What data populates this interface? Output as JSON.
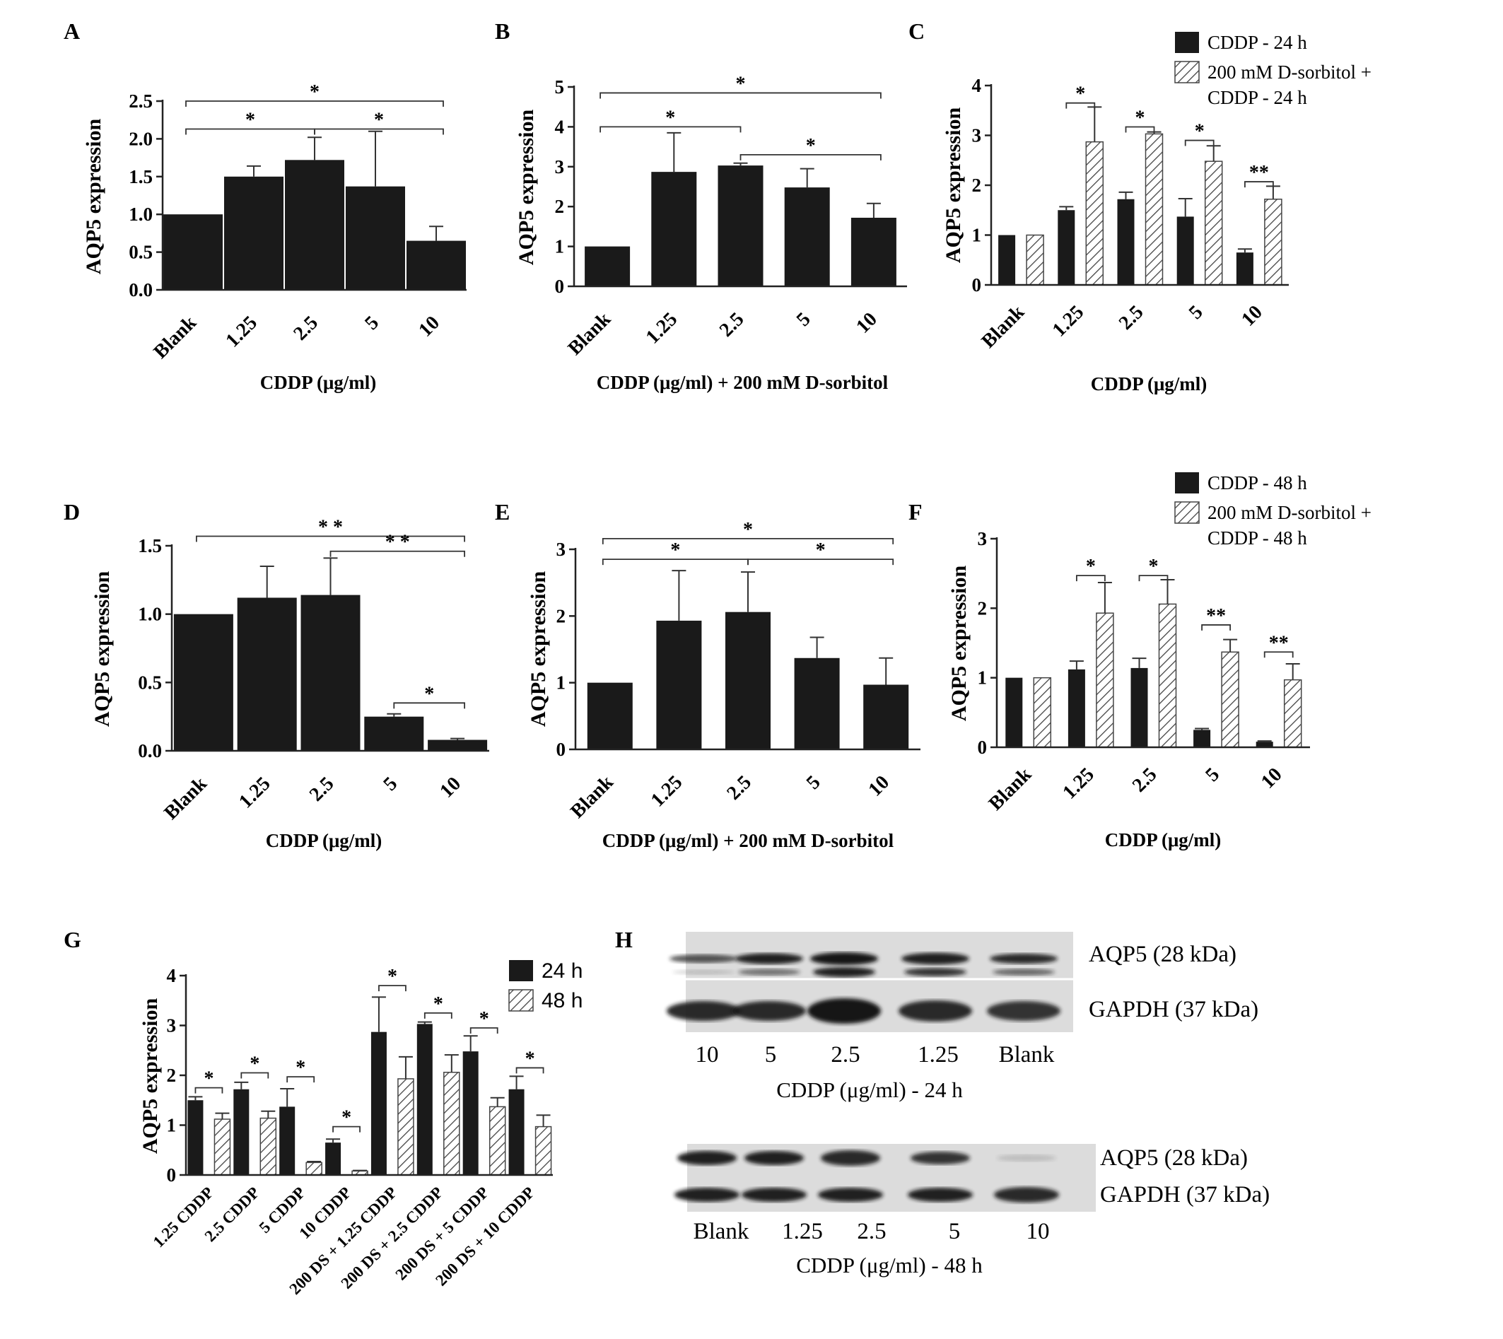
{
  "colors": {
    "solid": "#1a1a1a",
    "hatch_stroke": "#444444",
    "blot_bg": "#dcdcdc",
    "band": "#141414"
  },
  "chart_data": [
    {
      "panel": "A",
      "type": "bar",
      "ylabel": "AQP5 expression",
      "xlabel": "CDDP (μg/ml)",
      "categories": [
        "Blank",
        "1.25",
        "2.5",
        "5",
        "10"
      ],
      "ylim": [
        0,
        2.5
      ],
      "yticks": [
        "0.0",
        "0.5",
        "1.0",
        "1.5",
        "2.0",
        "2.5"
      ],
      "series": [
        {
          "values": [
            1.0,
            1.5,
            1.72,
            1.37,
            0.65
          ],
          "errors": [
            0,
            0.14,
            0.3,
            0.73,
            0.19
          ]
        }
      ],
      "annotations": [
        {
          "text": "*",
          "from": "Blank",
          "to": "10",
          "level": 2.5
        },
        {
          "text": "*",
          "from": "Blank",
          "to": "2.5",
          "level": 2.13
        },
        {
          "text": "*",
          "from": "2.5",
          "to": "10",
          "level": 2.13
        }
      ]
    },
    {
      "panel": "B",
      "type": "bar",
      "ylabel": "AQP5 expression",
      "xlabel": "CDDP (μg/ml) + 200 mM D-sorbitol",
      "categories": [
        "Blank",
        "1.25",
        "2.5",
        "5",
        "10"
      ],
      "ylim": [
        0,
        5
      ],
      "yticks": [
        "0",
        "1",
        "2",
        "3",
        "4",
        "5"
      ],
      "series": [
        {
          "values": [
            1.0,
            2.87,
            3.03,
            2.48,
            1.72
          ],
          "errors": [
            0,
            0.98,
            0.06,
            0.47,
            0.36
          ]
        }
      ],
      "annotations": [
        {
          "text": "*",
          "from": "Blank",
          "to": "10",
          "level": 4.85
        },
        {
          "text": "*",
          "from": "Blank",
          "to": "2.5",
          "level": 4.0
        },
        {
          "text": "*",
          "from": "2.5",
          "to": "10",
          "level": 3.3
        }
      ]
    },
    {
      "panel": "C",
      "type": "bar",
      "ylabel": "AQP5 expression",
      "xlabel": "CDDP (μg/ml)",
      "categories": [
        "Blank",
        "1.25",
        "2.5",
        "5",
        "10"
      ],
      "ylim": [
        0,
        4
      ],
      "yticks": [
        "0",
        "1",
        "2",
        "3",
        "4"
      ],
      "series": [
        {
          "name": "CDDP - 24 h",
          "values": [
            1.0,
            1.5,
            1.72,
            1.37,
            0.65
          ],
          "errors": [
            0,
            0.07,
            0.14,
            0.36,
            0.07
          ]
        },
        {
          "name": "200 mM D-sorbitol + CDDP - 24 h",
          "values": [
            1.0,
            2.87,
            3.03,
            2.48,
            1.72
          ],
          "errors": [
            0,
            0.7,
            0.04,
            0.31,
            0.26
          ]
        }
      ],
      "annotations": [
        {
          "text": "*",
          "category": "1.25",
          "level": 3.65
        },
        {
          "text": "*",
          "category": "2.5",
          "level": 3.17
        },
        {
          "text": "*",
          "category": "5",
          "level": 2.9
        },
        {
          "text": "**",
          "category": "10",
          "level": 2.07
        }
      ]
    },
    {
      "panel": "D",
      "type": "bar",
      "ylabel": "AQP5 expression",
      "xlabel": "CDDP (μg/ml)",
      "categories": [
        "Blank",
        "1.25",
        "2.5",
        "5",
        "10"
      ],
      "ylim": [
        0,
        1.5
      ],
      "yticks": [
        "0.0",
        "0.5",
        "1.0",
        "1.5"
      ],
      "series": [
        {
          "values": [
            1.0,
            1.12,
            1.14,
            0.25,
            0.08
          ],
          "errors": [
            0,
            0.23,
            0.27,
            0.02,
            0.01
          ]
        }
      ],
      "annotations": [
        {
          "text": "* *",
          "from": "Blank",
          "to": "10",
          "level": 1.57
        },
        {
          "text": "* *",
          "from": "2.5",
          "to": "10",
          "level": 1.46
        },
        {
          "text": "*",
          "from": "5",
          "to": "10",
          "level": 0.35
        }
      ]
    },
    {
      "panel": "E",
      "type": "bar",
      "ylabel": "AQP5 expression",
      "xlabel": "CDDP (μg/ml) + 200 mM D-sorbitol",
      "categories": [
        "Blank",
        "1.25",
        "2.5",
        "5",
        "10"
      ],
      "ylim": [
        0,
        3
      ],
      "yticks": [
        "0",
        "1",
        "2",
        "3"
      ],
      "series": [
        {
          "values": [
            1.0,
            1.93,
            2.06,
            1.37,
            0.97
          ],
          "errors": [
            0,
            0.75,
            0.6,
            0.31,
            0.4
          ]
        }
      ],
      "annotations": [
        {
          "text": "*",
          "from": "Blank",
          "to": "10",
          "level": 3.16
        },
        {
          "text": "*",
          "from": "Blank",
          "to": "2.5",
          "level": 2.85
        },
        {
          "text": "*",
          "from": "2.5",
          "to": "10",
          "level": 2.85
        }
      ]
    },
    {
      "panel": "F",
      "type": "bar",
      "ylabel": "AQP5 expression",
      "xlabel": "CDDP (μg/ml)",
      "categories": [
        "Blank",
        "1.25",
        "2.5",
        "5",
        "10"
      ],
      "ylim": [
        0,
        3
      ],
      "yticks": [
        "0",
        "1",
        "2",
        "3"
      ],
      "series": [
        {
          "name": "CDDP - 48 h",
          "values": [
            1.0,
            1.12,
            1.14,
            0.25,
            0.08
          ],
          "errors": [
            0,
            0.12,
            0.14,
            0.02,
            0.01
          ]
        },
        {
          "name": "200 mM D-sorbitol + CDDP - 48 h",
          "values": [
            1.0,
            1.93,
            2.06,
            1.37,
            0.97
          ],
          "errors": [
            0,
            0.44,
            0.35,
            0.18,
            0.23
          ]
        }
      ],
      "annotations": [
        {
          "text": "*",
          "category": "1.25",
          "level": 2.47
        },
        {
          "text": "*",
          "category": "2.5",
          "level": 2.47
        },
        {
          "text": "**",
          "category": "5",
          "level": 1.76
        },
        {
          "text": "**",
          "category": "10",
          "level": 1.37
        }
      ]
    },
    {
      "panel": "G",
      "type": "bar",
      "ylabel": "AQP5 expression",
      "xlabel": "",
      "categories": [
        "1.25 CDDP",
        "2.5 CDDP",
        "5 CDDP",
        "10 CDDP",
        "200 DS + 1.25 CDDP",
        "200 DS + 2.5 CDDP",
        "200 DS + 5 CDDP",
        "200 DS + 10 CDDP"
      ],
      "ylim": [
        0,
        4
      ],
      "yticks": [
        "0",
        "1",
        "2",
        "3",
        "4"
      ],
      "series": [
        {
          "name": "24 h",
          "values": [
            1.5,
            1.72,
            1.37,
            0.65,
            2.87,
            3.03,
            2.48,
            1.72
          ],
          "errors": [
            0.07,
            0.14,
            0.36,
            0.07,
            0.7,
            0.04,
            0.31,
            0.26
          ]
        },
        {
          "name": "48 h",
          "values": [
            1.12,
            1.14,
            0.25,
            0.08,
            1.93,
            2.06,
            1.37,
            0.97
          ],
          "errors": [
            0.12,
            0.14,
            0.02,
            0.01,
            0.44,
            0.35,
            0.18,
            0.23
          ]
        }
      ],
      "annotations": [
        {
          "text": "*",
          "category": "1.25 CDDP",
          "level": 1.75
        },
        {
          "text": "*",
          "category": "2.5 CDDP",
          "level": 2.05
        },
        {
          "text": "*",
          "category": "5 CDDP",
          "level": 1.97
        },
        {
          "text": "*",
          "category": "10 CDDP",
          "level": 0.97
        },
        {
          "text": "*",
          "category": "200 DS + 1.25 CDDP",
          "level": 3.8
        },
        {
          "text": "*",
          "category": "200 DS + 2.5 CDDP",
          "level": 3.25
        },
        {
          "text": "*",
          "category": "200 DS + 5 CDDP",
          "level": 2.95
        },
        {
          "text": "*",
          "category": "200 DS + 10 CDDP",
          "level": 2.15
        }
      ]
    }
  ],
  "blot": {
    "panel": "H",
    "top": {
      "band_labels": [
        "AQP5  (28 kDa)",
        "GAPDH (37 kDa)"
      ],
      "lanes": [
        "10",
        "5",
        "2.5",
        "1.25",
        "Blank"
      ],
      "caption": "CDDP (μg/ml) - 24 h"
    },
    "bottom": {
      "band_labels": [
        "AQP5  (28 kDa)",
        "GAPDH (37 kDa)"
      ],
      "lanes": [
        "Blank",
        "1.25",
        "2.5",
        "5",
        "10"
      ],
      "caption": "CDDP (μg/ml) - 48 h"
    }
  }
}
